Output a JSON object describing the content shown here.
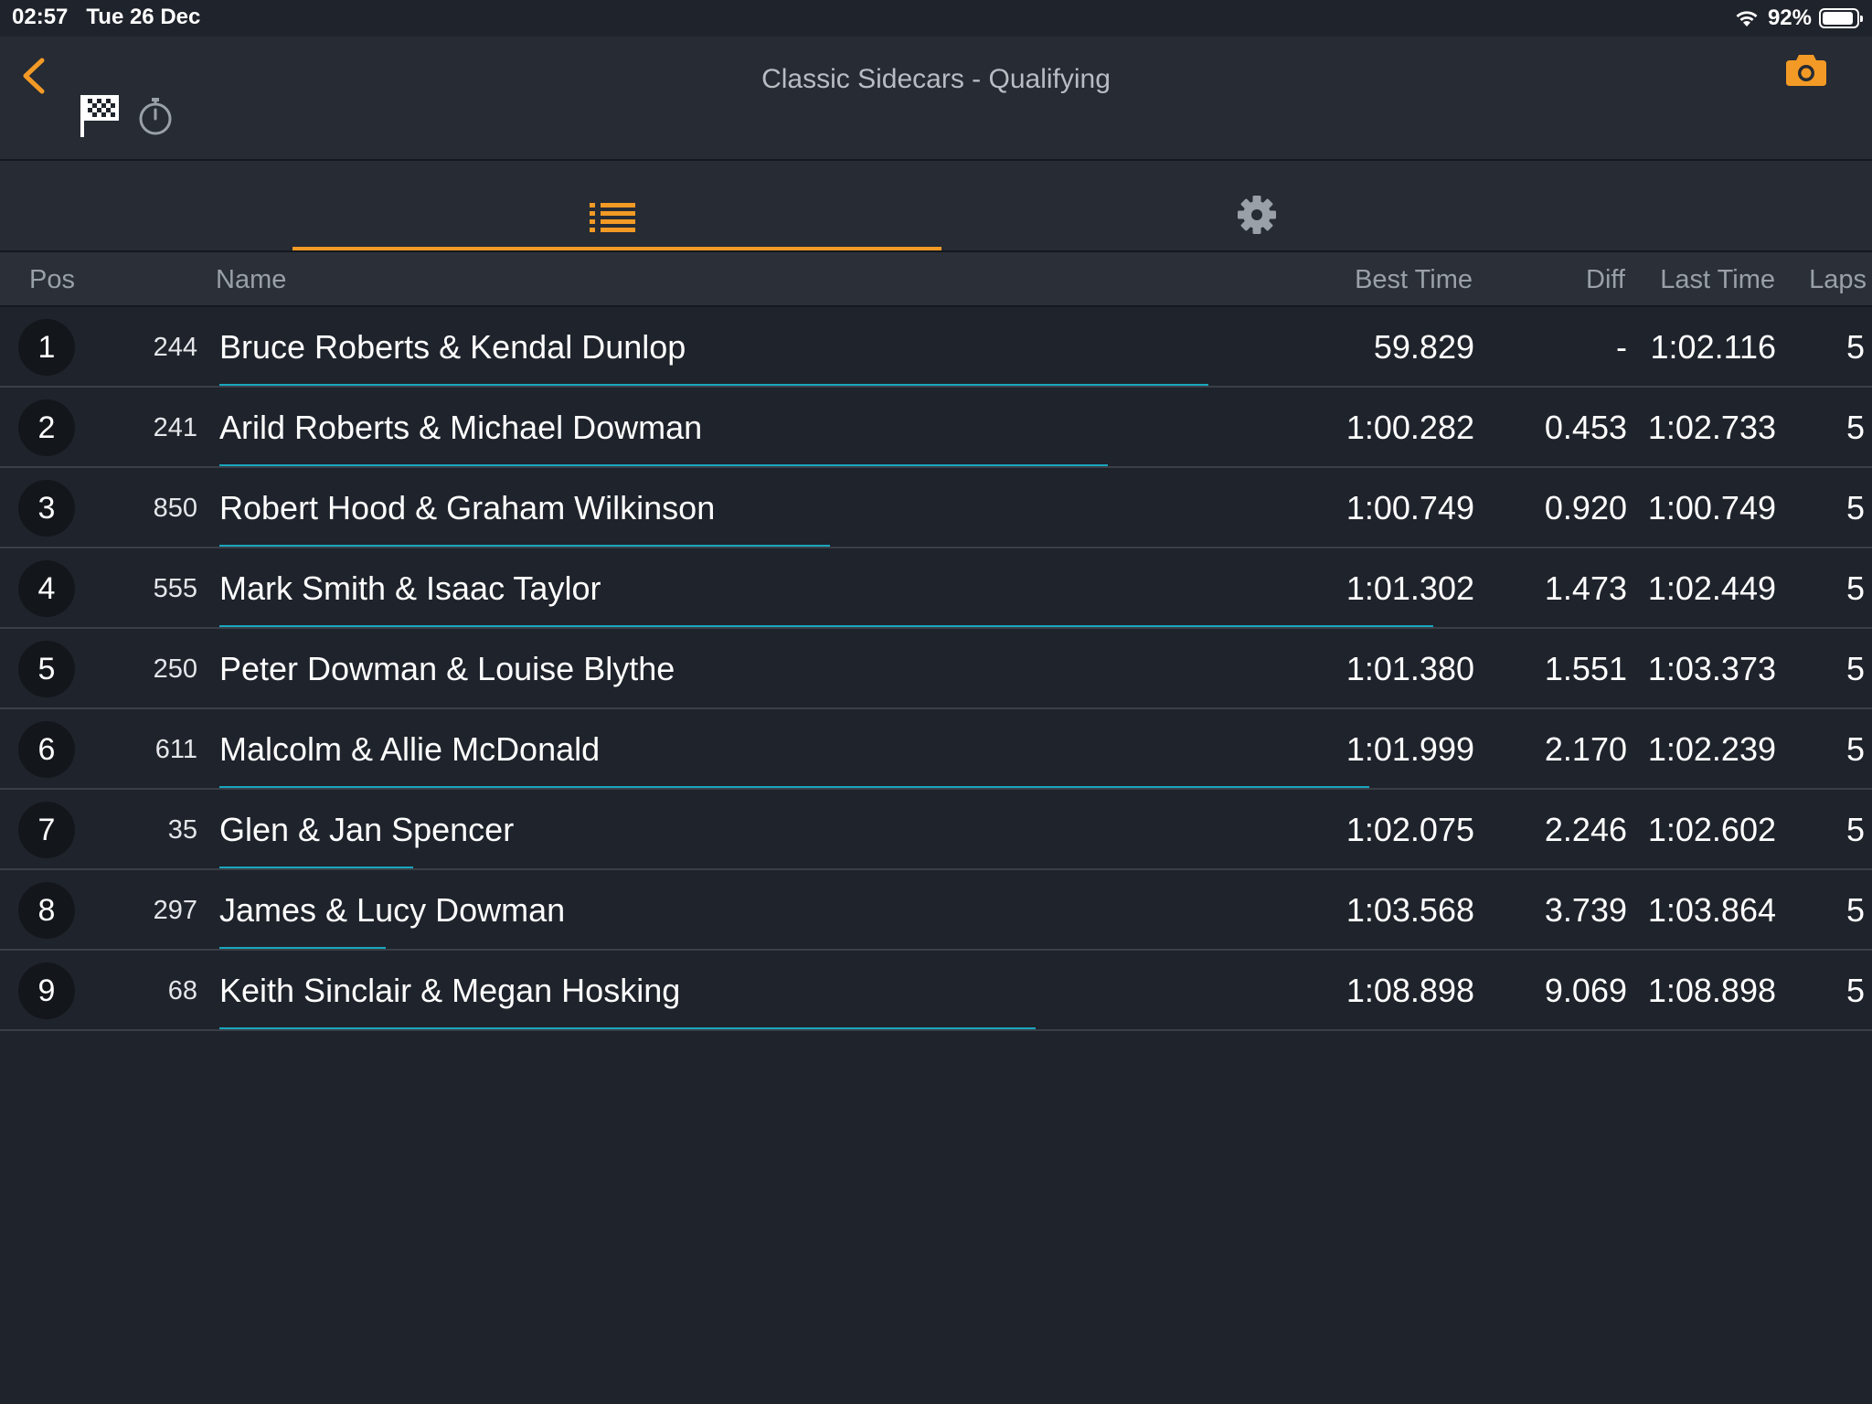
{
  "status_bar": {
    "time": "02:57",
    "date": "Tue 26 Dec",
    "battery_text": "92%",
    "battery_level": 0.92
  },
  "nav": {
    "title": "Classic Sidecars - Qualifying",
    "back_icon": "chevron-left-icon",
    "flag_icon": "checkered-flag-icon",
    "timer_icon": "stopwatch-icon",
    "camera_icon": "camera-icon"
  },
  "tabs": {
    "list_icon": "list-icon",
    "settings_icon": "gear-icon",
    "active": "list"
  },
  "colors": {
    "accent": "#f29a25",
    "progress": "#1aa6bf",
    "background": "#1f232b"
  },
  "table": {
    "headers": {
      "pos": "Pos",
      "name": "Name",
      "best": "Best Time",
      "diff": "Diff",
      "last": "Last Time",
      "laps": "Laps"
    },
    "rows": [
      {
        "pos": "1",
        "num": "244",
        "name": "Bruce Roberts & Kendal Dunlop",
        "best": "59.829",
        "diff": "-",
        "last": "1:02.116",
        "laps": "5",
        "progress": 0.601
      },
      {
        "pos": "2",
        "num": "241",
        "name": "Arild Roberts & Michael Dowman",
        "best": "1:00.282",
        "diff": "0.453",
        "last": "1:02.733",
        "laps": "5",
        "progress": 0.54
      },
      {
        "pos": "3",
        "num": "850",
        "name": "Robert Hood & Graham Wilkinson",
        "best": "1:00.749",
        "diff": "0.920",
        "last": "1:00.749",
        "laps": "5",
        "progress": 0.371
      },
      {
        "pos": "4",
        "num": "555",
        "name": "Mark Smith & Isaac Taylor",
        "best": "1:01.302",
        "diff": "1.473",
        "last": "1:02.449",
        "laps": "5",
        "progress": 0.738
      },
      {
        "pos": "5",
        "num": "250",
        "name": "Peter Dowman & Louise Blythe",
        "best": "1:01.380",
        "diff": "1.551",
        "last": "1:03.373",
        "laps": "5",
        "progress": 0.0
      },
      {
        "pos": "6",
        "num": "611",
        "name": "Malcolm & Allie McDonald",
        "best": "1:01.999",
        "diff": "2.170",
        "last": "1:02.239",
        "laps": "5",
        "progress": 0.699
      },
      {
        "pos": "7",
        "num": "35",
        "name": "Glen & Jan Spencer",
        "best": "1:02.075",
        "diff": "2.246",
        "last": "1:02.602",
        "laps": "5",
        "progress": 0.118
      },
      {
        "pos": "8",
        "num": "297",
        "name": "James & Lucy Dowman",
        "best": "1:03.568",
        "diff": "3.739",
        "last": "1:03.864",
        "laps": "5",
        "progress": 0.101
      },
      {
        "pos": "9",
        "num": "68",
        "name": "Keith Sinclair & Megan Hosking",
        "best": "1:08.898",
        "diff": "9.069",
        "last": "1:08.898",
        "laps": "5",
        "progress": 0.496
      }
    ]
  }
}
